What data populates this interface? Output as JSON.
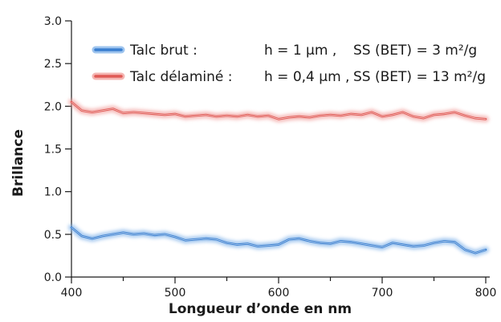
{
  "chart_data": {
    "type": "line",
    "xlabel": "Longueur d’onde en nm",
    "ylabel": "Brillance",
    "xlim": [
      400,
      800
    ],
    "ylim": [
      0,
      3
    ],
    "xticks": [
      "400",
      "500",
      "600",
      "700",
      "800"
    ],
    "yticks": [
      "0.0",
      "0.5",
      "1.0",
      "1.5",
      "2.0",
      "2.5",
      "3.0"
    ],
    "x": [
      400,
      410,
      420,
      430,
      440,
      450,
      460,
      470,
      480,
      490,
      500,
      510,
      520,
      530,
      540,
      550,
      560,
      570,
      580,
      590,
      600,
      610,
      620,
      630,
      640,
      650,
      660,
      670,
      680,
      690,
      700,
      710,
      720,
      730,
      740,
      750,
      760,
      770,
      780,
      790,
      800
    ],
    "series": [
      {
        "name": "Talc brut :",
        "color": "#3a7fd0",
        "glow": "#86b6ea",
        "values": [
          0.58,
          0.48,
          0.45,
          0.48,
          0.5,
          0.52,
          0.5,
          0.51,
          0.49,
          0.5,
          0.47,
          0.43,
          0.44,
          0.45,
          0.44,
          0.4,
          0.38,
          0.39,
          0.36,
          0.37,
          0.38,
          0.44,
          0.45,
          0.42,
          0.4,
          0.39,
          0.42,
          0.41,
          0.39,
          0.37,
          0.35,
          0.4,
          0.38,
          0.36,
          0.37,
          0.4,
          0.42,
          0.41,
          0.32,
          0.28,
          0.32
        ],
        "legend_note": "h = 1 µm ,",
        "legend_ss": "SS (BET) = 3 m²/g"
      },
      {
        "name": "Talc délaminé :",
        "color": "#e05a55",
        "glow": "#f2a3a0",
        "values": [
          2.05,
          1.95,
          1.93,
          1.95,
          1.97,
          1.92,
          1.93,
          1.92,
          1.91,
          1.9,
          1.91,
          1.88,
          1.89,
          1.9,
          1.88,
          1.89,
          1.88,
          1.9,
          1.88,
          1.89,
          1.85,
          1.87,
          1.88,
          1.87,
          1.89,
          1.9,
          1.89,
          1.91,
          1.9,
          1.93,
          1.88,
          1.9,
          1.93,
          1.88,
          1.86,
          1.9,
          1.91,
          1.93,
          1.89,
          1.86,
          1.85
        ],
        "legend_note": "h = 0,4 µm ,",
        "legend_ss": "SS (BET) = 13 m²/g"
      }
    ]
  }
}
